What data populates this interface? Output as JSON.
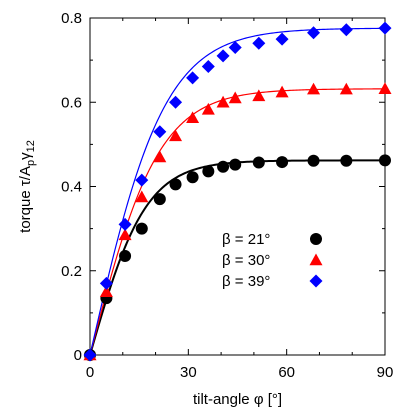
{
  "chart_data": {
    "type": "line",
    "title": "",
    "xlabel": "tilt-angle φ [°]",
    "ylabel_parts": {
      "main": "torque τ/A",
      "sub_p": "p",
      "gamma": "γ",
      "sub_12": "12"
    },
    "xlim": [
      0,
      90
    ],
    "ylim": [
      0,
      0.8
    ],
    "xticks": [
      "0",
      "30",
      "60",
      "90"
    ],
    "yticks": [
      "0",
      "0.2",
      "0.4",
      "0.6",
      "0.8"
    ],
    "xtick_values": [
      0,
      30,
      60,
      90
    ],
    "ytick_values": [
      0,
      0.2,
      0.4,
      0.6,
      0.8
    ],
    "grid": false,
    "legend_position": "center-right",
    "series": [
      {
        "name": "β = 21°",
        "color": "#000000",
        "marker": "circle",
        "x": [
          0,
          5,
          10.7,
          15.8,
          21.3,
          26.1,
          31.3,
          36.1,
          40.6,
          44.3,
          51.5,
          58.6,
          68.2,
          78.2,
          90
        ],
        "y": [
          0,
          0.135,
          0.235,
          0.3,
          0.37,
          0.405,
          0.422,
          0.436,
          0.447,
          0.452,
          0.457,
          0.458,
          0.461,
          0.461,
          0.462
        ]
      },
      {
        "name": "β = 30°",
        "color": "#ff0000",
        "marker": "triangle",
        "x": [
          0,
          5,
          10.7,
          15.8,
          21.3,
          26.1,
          31.3,
          36.1,
          40.6,
          44.3,
          51.5,
          58.6,
          68.2,
          78.2,
          90
        ],
        "y": [
          0,
          0.15,
          0.285,
          0.375,
          0.47,
          0.52,
          0.563,
          0.583,
          0.6,
          0.61,
          0.615,
          0.624,
          0.631,
          0.631,
          0.632
        ]
      },
      {
        "name": "β = 39°",
        "color": "#0000ff",
        "marker": "diamond",
        "x": [
          0,
          5,
          10.7,
          15.8,
          21.3,
          26.1,
          31.3,
          36.1,
          40.6,
          44.3,
          51.5,
          58.6,
          68.2,
          78.2,
          90
        ],
        "y": [
          0,
          0.17,
          0.31,
          0.415,
          0.53,
          0.6,
          0.658,
          0.685,
          0.71,
          0.73,
          0.74,
          0.75,
          0.765,
          0.772,
          0.776
        ]
      }
    ]
  }
}
